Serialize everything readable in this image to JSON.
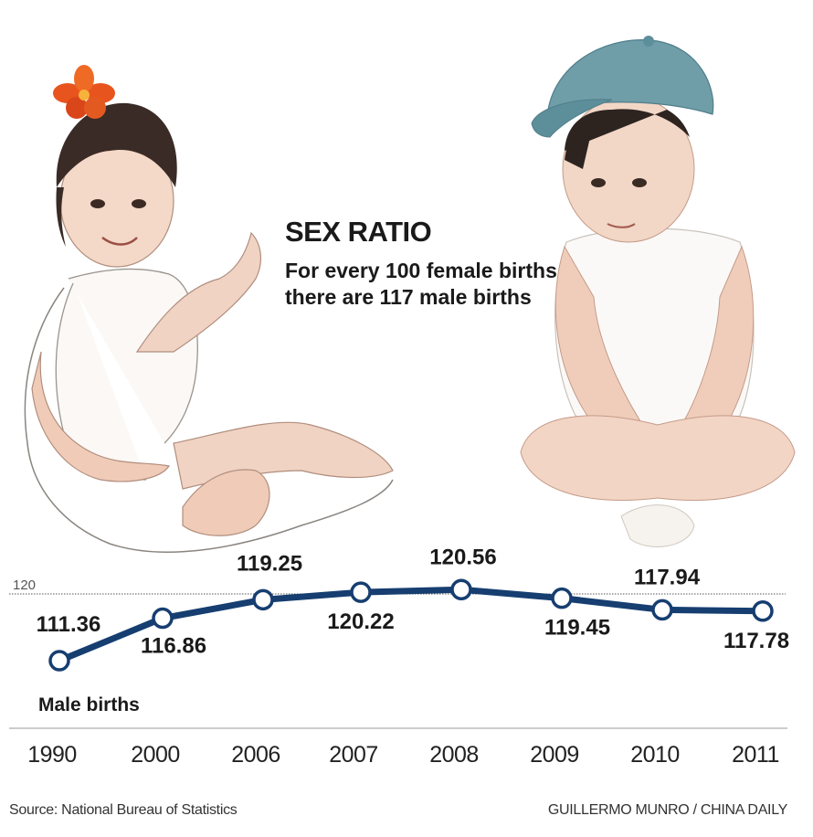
{
  "header": {
    "title": "SEX RATIO",
    "subtitle": "For every 100 female births there are 117 male births"
  },
  "chart_data": {
    "type": "line",
    "categories": [
      "1990",
      "2000",
      "2006",
      "2007",
      "2008",
      "2009",
      "2010",
      "2011"
    ],
    "series": [
      {
        "name": "Male births",
        "values": [
          111.36,
          116.86,
          119.25,
          120.22,
          120.56,
          119.45,
          117.94,
          117.78
        ]
      }
    ],
    "data_labels": [
      "111.36",
      "116.86",
      "119.25",
      "120.22",
      "120.56",
      "119.45",
      "117.94",
      "117.78"
    ],
    "reference_line": {
      "value": 120,
      "label": "120"
    },
    "ylim": [
      110,
      122
    ],
    "title": "SEX RATIO",
    "xlabel": "",
    "ylabel": "",
    "grid": false,
    "colors": {
      "line": "#163e70",
      "marker_fill": "#ffffff",
      "reference": "#555555"
    }
  },
  "illustrations": {
    "left": "baby-girl-with-orange-flower",
    "right": "baby-boy-with-blue-cap"
  },
  "footer": {
    "source": "Source: National Bureau of Statistics",
    "credit": "GUILLERMO MUNRO / CHINA DAILY"
  }
}
